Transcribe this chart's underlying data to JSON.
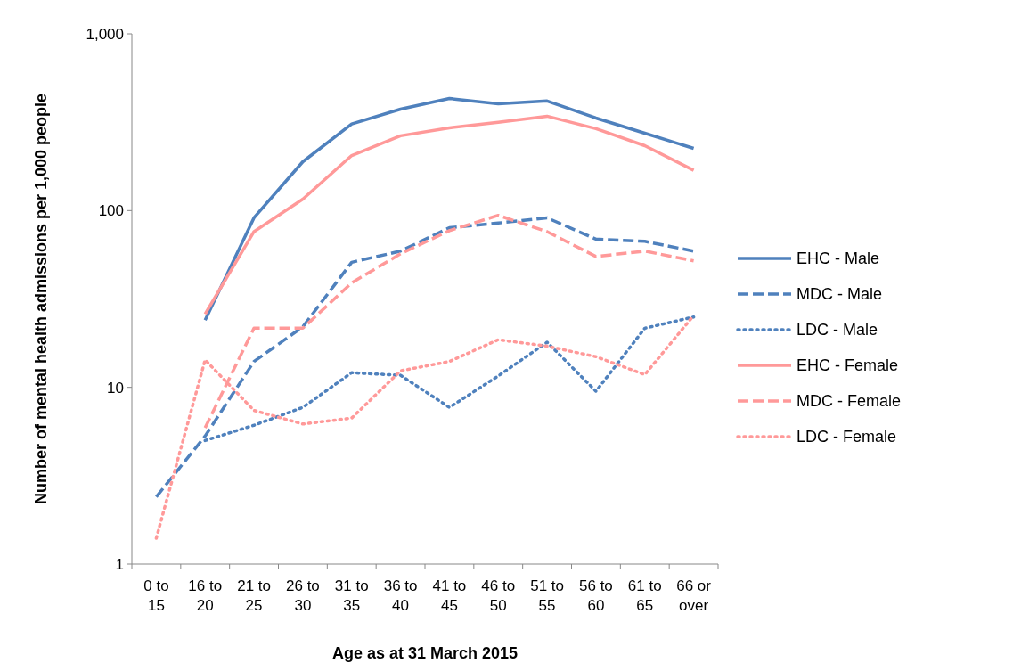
{
  "chart_data": {
    "type": "line",
    "xlabel": "Age as at 31 March 2015",
    "ylabel": "Number of mental health admissions per 1,000 people",
    "categories": [
      "0 to 15",
      "16 to 20",
      "21 to 25",
      "26 to 30",
      "31 to 35",
      "36 to 40",
      "41 to 45",
      "46 to 50",
      "51 to 55",
      "56 to 60",
      "61 to 65",
      "66 or over"
    ],
    "series": [
      {
        "name": "EHC - Male",
        "color": "#4f81bd",
        "line_style": "solid",
        "values": [
          null,
          24,
          91,
          189,
          309,
          375,
          431,
          402,
          417,
          334,
          274,
          225
        ]
      },
      {
        "name": "MDC - Male",
        "color": "#4f81bd",
        "line_style": "dashed",
        "values": [
          2.4,
          5.3,
          14,
          22,
          51,
          59,
          80,
          85,
          91,
          69,
          67,
          59
        ]
      },
      {
        "name": "LDC - Male",
        "color": "#4f81bd",
        "line_style": "dotted",
        "values": [
          null,
          5.0,
          6.1,
          7.7,
          12.1,
          11.7,
          7.7,
          11.6,
          18,
          9.5,
          21.6,
          25
        ]
      },
      {
        "name": "EHC - Female",
        "color": "#ff9999",
        "line_style": "solid",
        "values": [
          null,
          26,
          76,
          116,
          205,
          265,
          294,
          316,
          342,
          291,
          233,
          169
        ]
      },
      {
        "name": "MDC - Female",
        "color": "#ff9999",
        "line_style": "dashed",
        "values": [
          null,
          5.9,
          21.6,
          21.6,
          39,
          57,
          77,
          94,
          76,
          55,
          59,
          52
        ]
      },
      {
        "name": "LDC - Female",
        "color": "#ff9999",
        "line_style": "dotted",
        "values": [
          1.4,
          14.3,
          7.4,
          6.2,
          6.7,
          12.4,
          14,
          18.6,
          17.1,
          14.9,
          11.8,
          25.5
        ]
      }
    ],
    "log": true,
    "ylim": [
      1,
      1000
    ],
    "yticks": [
      1,
      10,
      100,
      {
        "value": 1000,
        "label": "1,000"
      }
    ],
    "grid": false,
    "legend": "right",
    "marker": "none"
  }
}
